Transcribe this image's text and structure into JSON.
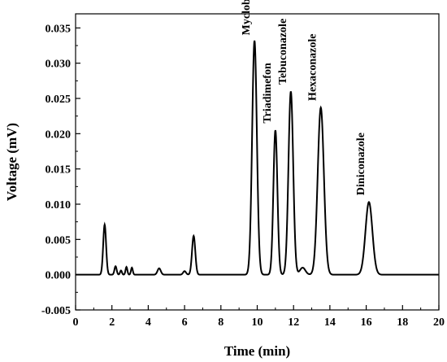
{
  "chart_data": {
    "type": "line",
    "title": "",
    "xlabel": "Time (min)",
    "ylabel": "Voltage (mV)",
    "xlim": [
      0,
      20
    ],
    "ylim": [
      -0.005,
      0.037
    ],
    "xticks": [
      0,
      2,
      4,
      6,
      8,
      10,
      12,
      14,
      16,
      18,
      20
    ],
    "yticks": [
      -0.005,
      0.0,
      0.005,
      0.01,
      0.015,
      0.02,
      0.025,
      0.03,
      0.035
    ],
    "ytick_labels": [
      "-0.005",
      "0.000",
      "0.005",
      "0.010",
      "0.015",
      "0.020",
      "0.025",
      "0.030",
      "0.035"
    ],
    "grid": false,
    "legend": "none",
    "series": [
      {
        "color": "#000000",
        "baseline": 0.0,
        "peaks": [
          {
            "t": 1.6,
            "h": 0.0071,
            "w": 0.08
          },
          {
            "t": 2.2,
            "h": 0.0012,
            "w": 0.06
          },
          {
            "t": 2.5,
            "h": 0.0006,
            "w": 0.05
          },
          {
            "t": 2.8,
            "h": 0.0011,
            "w": 0.05
          },
          {
            "t": 3.1,
            "h": 0.001,
            "w": 0.05
          },
          {
            "t": 4.6,
            "h": 0.0009,
            "w": 0.09
          },
          {
            "t": 6.0,
            "h": 0.0005,
            "w": 0.08
          },
          {
            "t": 6.5,
            "h": 0.0055,
            "w": 0.09
          },
          {
            "t": 9.85,
            "h": 0.0332,
            "w": 0.13
          },
          {
            "t": 11.0,
            "h": 0.0205,
            "w": 0.11
          },
          {
            "t": 11.85,
            "h": 0.026,
            "w": 0.13
          },
          {
            "t": 12.5,
            "h": 0.001,
            "w": 0.15
          },
          {
            "t": 13.5,
            "h": 0.0237,
            "w": 0.17
          },
          {
            "t": 16.15,
            "h": 0.0103,
            "w": 0.19
          }
        ]
      }
    ],
    "annotations": [
      {
        "text": "Myclobutanil",
        "x": 9.85,
        "y": 0.0335
      },
      {
        "text": "Triadimefon",
        "x": 11.0,
        "y": 0.021
      },
      {
        "text": "Tebuconazole",
        "x": 11.85,
        "y": 0.0265
      },
      {
        "text": "Hexaconazole",
        "x": 13.5,
        "y": 0.0242
      },
      {
        "text": "Diniconazole",
        "x": 16.15,
        "y": 0.0108
      }
    ]
  }
}
